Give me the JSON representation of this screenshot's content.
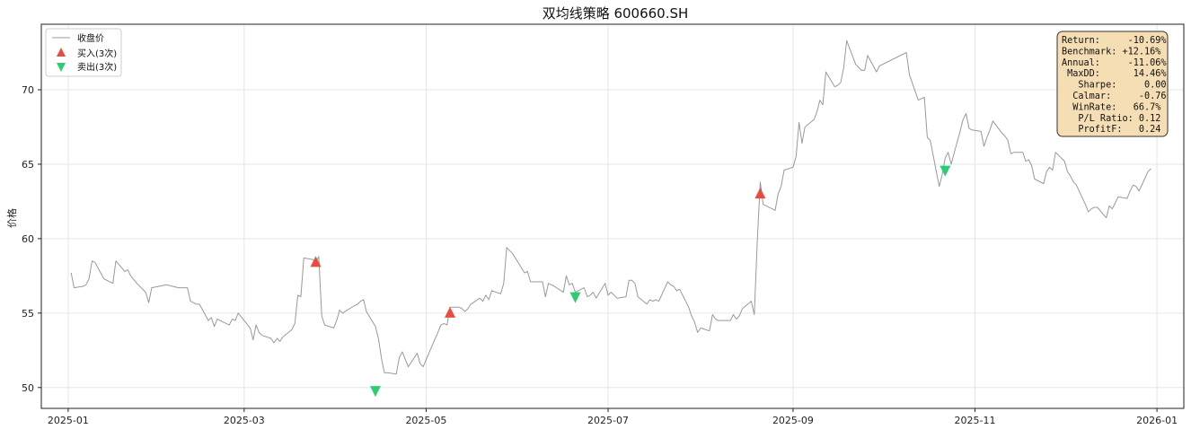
{
  "chart_data": {
    "type": "line",
    "title": "双均线策略  600660.SH",
    "ylabel": "价格",
    "xlabel": "",
    "xlim": [
      "2024-12-23",
      "2026-01-10"
    ],
    "ylim": [
      48.6,
      74.4
    ],
    "grid": true,
    "legend_position": "top-left",
    "x_ticks": [
      "2025-01",
      "2025-03",
      "2025-05",
      "2025-07",
      "2025-09",
      "2025-11",
      "2026-01"
    ],
    "y_ticks": [
      50,
      55,
      60,
      65,
      70
    ],
    "colors": {
      "price": "#999999",
      "buy": "#e74c3c",
      "sell": "#2ecc71"
    },
    "series": [
      {
        "name": "收盘价",
        "points": [
          [
            "2025-01-02",
            57.7
          ],
          [
            "2025-01-03",
            56.7
          ],
          [
            "2025-01-06",
            56.8
          ],
          [
            "2025-01-07",
            56.9
          ],
          [
            "2025-01-08",
            57.3
          ],
          [
            "2025-01-09",
            58.5
          ],
          [
            "2025-01-10",
            58.4
          ],
          [
            "2025-01-13",
            57.3
          ],
          [
            "2025-01-15",
            57.1
          ],
          [
            "2025-01-16",
            57.0
          ],
          [
            "2025-01-17",
            58.5
          ],
          [
            "2025-01-20",
            57.8
          ],
          [
            "2025-01-21",
            57.9
          ],
          [
            "2025-01-22",
            57.5
          ],
          [
            "2025-01-24",
            57.0
          ],
          [
            "2025-01-27",
            56.4
          ],
          [
            "2025-01-28",
            55.7
          ],
          [
            "2025-01-29",
            56.7
          ],
          [
            "2025-02-03",
            56.9
          ],
          [
            "2025-02-05",
            56.8
          ],
          [
            "2025-02-07",
            56.7
          ],
          [
            "2025-02-10",
            56.7
          ],
          [
            "2025-02-11",
            55.8
          ],
          [
            "2025-02-13",
            55.6
          ],
          [
            "2025-02-14",
            55.6
          ],
          [
            "2025-02-17",
            54.5
          ],
          [
            "2025-02-18",
            54.7
          ],
          [
            "2025-02-19",
            54.1
          ],
          [
            "2025-02-20",
            54.6
          ],
          [
            "2025-02-24",
            54.2
          ],
          [
            "2025-02-25",
            54.6
          ],
          [
            "2025-02-26",
            54.5
          ],
          [
            "2025-02-27",
            55.0
          ],
          [
            "2025-03-03",
            54.0
          ],
          [
            "2025-03-04",
            53.2
          ],
          [
            "2025-03-05",
            54.2
          ],
          [
            "2025-03-06",
            53.7
          ],
          [
            "2025-03-07",
            53.5
          ],
          [
            "2025-03-10",
            53.3
          ],
          [
            "2025-03-11",
            53.0
          ],
          [
            "2025-03-12",
            53.3
          ],
          [
            "2025-03-13",
            53.1
          ],
          [
            "2025-03-14",
            53.4
          ],
          [
            "2025-03-17",
            53.9
          ],
          [
            "2025-03-18",
            54.3
          ],
          [
            "2025-03-19",
            56.2
          ],
          [
            "2025-03-20",
            56.1
          ],
          [
            "2025-03-21",
            58.7
          ],
          [
            "2025-03-24",
            58.6
          ],
          [
            "2025-03-25",
            58.4
          ],
          [
            "2025-03-26",
            58.8
          ],
          [
            "2025-03-27",
            54.8
          ],
          [
            "2025-03-28",
            54.2
          ],
          [
            "2025-03-31",
            54.0
          ],
          [
            "2025-04-01",
            54.5
          ],
          [
            "2025-04-02",
            55.2
          ],
          [
            "2025-04-03",
            55.0
          ],
          [
            "2025-04-07",
            55.5
          ],
          [
            "2025-04-08",
            55.6
          ],
          [
            "2025-04-09",
            55.8
          ],
          [
            "2025-04-10",
            55.9
          ],
          [
            "2025-04-11",
            55.1
          ],
          [
            "2025-04-14",
            54.1
          ],
          [
            "2025-04-15",
            53.3
          ],
          [
            "2025-04-16",
            52.0
          ],
          [
            "2025-04-17",
            51.0
          ],
          [
            "2025-04-18",
            51.0
          ],
          [
            "2025-04-21",
            50.9
          ],
          [
            "2025-04-22",
            52.0
          ],
          [
            "2025-04-23",
            52.4
          ],
          [
            "2025-04-24",
            51.9
          ],
          [
            "2025-04-25",
            51.4
          ],
          [
            "2025-04-28",
            52.3
          ],
          [
            "2025-04-29",
            51.6
          ],
          [
            "2025-04-30",
            51.4
          ],
          [
            "2025-05-06",
            54.2
          ],
          [
            "2025-05-07",
            54.3
          ],
          [
            "2025-05-08",
            54.2
          ],
          [
            "2025-05-09",
            55.4
          ],
          [
            "2025-05-12",
            55.4
          ],
          [
            "2025-05-13",
            55.3
          ],
          [
            "2025-05-14",
            55.1
          ],
          [
            "2025-05-15",
            55.3
          ],
          [
            "2025-05-16",
            55.6
          ],
          [
            "2025-05-19",
            56.0
          ],
          [
            "2025-05-20",
            55.8
          ],
          [
            "2025-05-21",
            56.2
          ],
          [
            "2025-05-22",
            55.9
          ],
          [
            "2025-05-23",
            56.5
          ],
          [
            "2025-05-26",
            56.3
          ],
          [
            "2025-05-27",
            57.0
          ],
          [
            "2025-05-28",
            59.4
          ],
          [
            "2025-05-29",
            59.2
          ],
          [
            "2025-05-30",
            59.0
          ],
          [
            "2025-06-03",
            57.7
          ],
          [
            "2025-06-04",
            57.8
          ],
          [
            "2025-06-05",
            57.1
          ],
          [
            "2025-06-06",
            57.1
          ],
          [
            "2025-06-09",
            57.1
          ],
          [
            "2025-06-10",
            56.1
          ],
          [
            "2025-06-11",
            57.0
          ],
          [
            "2025-06-12",
            56.9
          ],
          [
            "2025-06-13",
            56.8
          ],
          [
            "2025-06-16",
            56.4
          ],
          [
            "2025-06-17",
            57.5
          ],
          [
            "2025-06-18",
            56.9
          ],
          [
            "2025-06-19",
            57.0
          ],
          [
            "2025-06-20",
            56.4
          ],
          [
            "2025-06-23",
            56.7
          ],
          [
            "2025-06-24",
            56.1
          ],
          [
            "2025-06-25",
            56.2
          ],
          [
            "2025-06-26",
            56.4
          ],
          [
            "2025-06-27",
            56.0
          ],
          [
            "2025-06-30",
            57.0
          ],
          [
            "2025-07-01",
            56.2
          ],
          [
            "2025-07-02",
            56.4
          ],
          [
            "2025-07-03",
            56.2
          ],
          [
            "2025-07-04",
            56.0
          ],
          [
            "2025-07-07",
            56.1
          ],
          [
            "2025-07-08",
            57.2
          ],
          [
            "2025-07-09",
            57.2
          ],
          [
            "2025-07-10",
            57.0
          ],
          [
            "2025-07-11",
            56.1
          ],
          [
            "2025-07-14",
            55.6
          ],
          [
            "2025-07-15",
            55.9
          ],
          [
            "2025-07-16",
            55.8
          ],
          [
            "2025-07-17",
            55.9
          ],
          [
            "2025-07-18",
            55.8
          ],
          [
            "2025-07-21",
            57.1
          ],
          [
            "2025-07-22",
            56.9
          ],
          [
            "2025-07-23",
            56.8
          ],
          [
            "2025-07-24",
            56.5
          ],
          [
            "2025-07-25",
            56.6
          ],
          [
            "2025-07-28",
            55.4
          ],
          [
            "2025-07-29",
            54.8
          ],
          [
            "2025-07-30",
            54.4
          ],
          [
            "2025-07-31",
            53.7
          ],
          [
            "2025-08-01",
            54.0
          ],
          [
            "2025-08-04",
            53.8
          ],
          [
            "2025-08-05",
            54.9
          ],
          [
            "2025-08-06",
            54.6
          ],
          [
            "2025-08-07",
            54.5
          ],
          [
            "2025-08-08",
            54.5
          ],
          [
            "2025-08-11",
            54.5
          ],
          [
            "2025-08-12",
            54.9
          ],
          [
            "2025-08-13",
            54.6
          ],
          [
            "2025-08-14",
            54.8
          ],
          [
            "2025-08-15",
            55.3
          ],
          [
            "2025-08-18",
            55.8
          ],
          [
            "2025-08-19",
            54.9
          ],
          [
            "2025-08-20",
            59.8
          ],
          [
            "2025-08-21",
            63.8
          ],
          [
            "2025-08-22",
            62.3
          ],
          [
            "2025-08-25",
            62.0
          ],
          [
            "2025-08-26",
            61.9
          ],
          [
            "2025-08-27",
            63.0
          ],
          [
            "2025-08-28",
            63.5
          ],
          [
            "2025-08-29",
            64.6
          ],
          [
            "2025-09-01",
            64.8
          ],
          [
            "2025-09-02",
            65.5
          ],
          [
            "2025-09-03",
            67.8
          ],
          [
            "2025-09-04",
            66.4
          ],
          [
            "2025-09-05",
            67.5
          ],
          [
            "2025-09-08",
            68.0
          ],
          [
            "2025-09-09",
            68.5
          ],
          [
            "2025-09-10",
            69.3
          ],
          [
            "2025-09-11",
            69.0
          ],
          [
            "2025-09-12",
            71.2
          ],
          [
            "2025-09-15",
            70.2
          ],
          [
            "2025-09-16",
            70.3
          ],
          [
            "2025-09-17",
            70.5
          ],
          [
            "2025-09-18",
            71.5
          ],
          [
            "2025-09-19",
            73.3
          ],
          [
            "2025-09-22",
            71.7
          ],
          [
            "2025-09-23",
            71.5
          ],
          [
            "2025-09-24",
            71.3
          ],
          [
            "2025-09-25",
            71.3
          ],
          [
            "2025-09-26",
            72.3
          ],
          [
            "2025-09-29",
            71.2
          ],
          [
            "2025-09-30",
            71.6
          ],
          [
            "2025-10-09",
            72.5
          ],
          [
            "2025-10-10",
            71.0
          ],
          [
            "2025-10-13",
            69.3
          ],
          [
            "2025-10-14",
            69.4
          ],
          [
            "2025-10-15",
            69.5
          ],
          [
            "2025-10-16",
            66.8
          ],
          [
            "2025-10-17",
            66.6
          ],
          [
            "2025-10-20",
            63.5
          ],
          [
            "2025-10-21",
            64.3
          ],
          [
            "2025-10-22",
            65.4
          ],
          [
            "2025-10-23",
            65.8
          ],
          [
            "2025-10-24",
            65.0
          ],
          [
            "2025-10-27",
            67.2
          ],
          [
            "2025-10-28",
            68.0
          ],
          [
            "2025-10-29",
            68.4
          ],
          [
            "2025-10-30",
            67.4
          ],
          [
            "2025-10-31",
            67.3
          ],
          [
            "2025-11-03",
            67.2
          ],
          [
            "2025-11-04",
            66.2
          ],
          [
            "2025-11-05",
            66.8
          ],
          [
            "2025-11-06",
            67.3
          ],
          [
            "2025-11-07",
            67.9
          ],
          [
            "2025-11-10",
            67.1
          ],
          [
            "2025-11-11",
            66.9
          ],
          [
            "2025-11-12",
            66.6
          ],
          [
            "2025-11-13",
            65.7
          ],
          [
            "2025-11-14",
            65.8
          ],
          [
            "2025-11-17",
            65.8
          ],
          [
            "2025-11-18",
            65.2
          ],
          [
            "2025-11-19",
            65.3
          ],
          [
            "2025-11-20",
            64.9
          ],
          [
            "2025-11-21",
            64.0
          ],
          [
            "2025-11-24",
            63.7
          ],
          [
            "2025-11-25",
            64.5
          ],
          [
            "2025-11-26",
            64.8
          ],
          [
            "2025-11-27",
            64.6
          ],
          [
            "2025-11-28",
            65.8
          ],
          [
            "2025-12-01",
            65.2
          ],
          [
            "2025-12-02",
            64.5
          ],
          [
            "2025-12-03",
            64.2
          ],
          [
            "2025-12-04",
            63.8
          ],
          [
            "2025-12-05",
            63.6
          ],
          [
            "2025-12-08",
            62.3
          ],
          [
            "2025-12-09",
            61.8
          ],
          [
            "2025-12-10",
            62.0
          ],
          [
            "2025-12-11",
            62.1
          ],
          [
            "2025-12-12",
            62.1
          ],
          [
            "2025-12-15",
            61.4
          ],
          [
            "2025-12-16",
            62.2
          ],
          [
            "2025-12-17",
            62.0
          ],
          [
            "2025-12-18",
            62.4
          ],
          [
            "2025-12-19",
            62.8
          ],
          [
            "2025-12-22",
            62.7
          ],
          [
            "2025-12-23",
            63.2
          ],
          [
            "2025-12-24",
            63.6
          ],
          [
            "2025-12-25",
            63.5
          ],
          [
            "2025-12-26",
            63.2
          ],
          [
            "2025-12-29",
            64.5
          ],
          [
            "2025-12-30",
            64.7
          ]
        ]
      }
    ],
    "markers": [
      {
        "name": "买入(3次)",
        "type": "buy",
        "points": [
          [
            "2025-03-25",
            58.4
          ],
          [
            "2025-05-09",
            55.0
          ],
          [
            "2025-08-21",
            63.0
          ]
        ]
      },
      {
        "name": "卖出(3次)",
        "type": "sell",
        "points": [
          [
            "2025-04-14",
            49.8
          ],
          [
            "2025-06-20",
            56.1
          ],
          [
            "2025-10-22",
            64.6
          ]
        ]
      }
    ],
    "stats_box": {
      "position": "top-right",
      "lines": [
        "Return:     -10.69%",
        "Benchmark: +12.16%",
        "Annual:     -11.06%",
        " MaxDD:      14.46%",
        "   Sharpe:     0.00",
        "  Calmar:     -0.76",
        "  WinRate:   66.7%",
        "   P/L Ratio: 0.12",
        "   ProfitF:   0.24"
      ]
    }
  }
}
